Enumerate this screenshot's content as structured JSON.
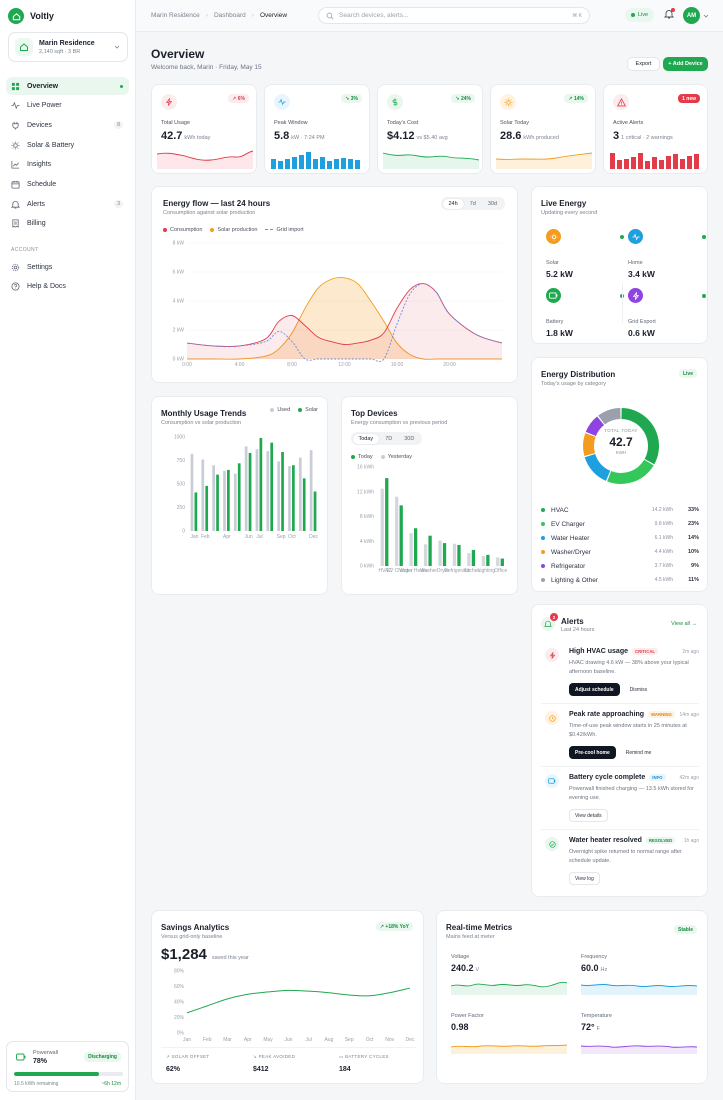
{
  "app": {
    "name": "Voltly"
  },
  "home": {
    "name": "Marin Residence",
    "details": "2,140 sqft · 3 BR"
  },
  "nav": [
    {
      "label": "Overview",
      "badge": ""
    },
    {
      "label": "Live Power",
      "badge": ""
    },
    {
      "label": "Devices",
      "badge": "8"
    },
    {
      "label": "Solar & Battery",
      "badge": ""
    },
    {
      "label": "Insights",
      "badge": ""
    },
    {
      "label": "Schedule",
      "badge": ""
    },
    {
      "label": "Alerts",
      "badge": "3"
    },
    {
      "label": "Billing",
      "badge": ""
    }
  ],
  "account": {
    "section": "ACCOUNT",
    "items": [
      "Settings",
      "Help & Docs"
    ]
  },
  "powerwall": {
    "label": "Powerwall",
    "value": "78%",
    "level": 0.78,
    "status": "Discharging",
    "remaining": "10.5 kWh remaining",
    "time": "~6h 12m"
  },
  "topbar": {
    "crumbs": [
      "Marin Residence",
      "Dashboard",
      "Overview"
    ],
    "search_placeholder": "Search devices, alerts...",
    "shortcut": "⌘ K",
    "live": "Live",
    "avatar": "AM"
  },
  "header": {
    "title": "Overview",
    "subtitle": "Welcome back, Marin · Friday, May 15",
    "export": "Export",
    "add": "+ Add Device"
  },
  "kpis": [
    {
      "label": "Total Usage",
      "value": "42.7",
      "unit": "kWh today",
      "badge": "6%",
      "color": "#e23b4a"
    },
    {
      "label": "Peak Window",
      "value": "5.8",
      "unit": "kW · 7:24 PM",
      "badge": "3%",
      "color": "#1ea0e0"
    },
    {
      "label": "Today's Cost",
      "value": "$4.12",
      "unit": "vs $5.40 avg",
      "badge": "24%",
      "color": "#1fa84f"
    },
    {
      "label": "Solar Today",
      "value": "28.6",
      "unit": "kWh produced",
      "badge": "14%",
      "color": "#f39c1f"
    },
    {
      "label": "Active Alerts",
      "value": "3",
      "unit": "1 critical · 2 warnings",
      "badge": "1 new",
      "color": "#e23b4a"
    }
  ],
  "energy_flow": {
    "title": "Energy flow — last 24 hours",
    "subtitle": "Consumption against solar production",
    "tabs": [
      "24h",
      "7d",
      "30d"
    ],
    "legend": [
      "Consumption",
      "Solar production",
      "Grid import"
    ]
  },
  "live_energy": {
    "title": "Live Energy",
    "subtitle": "Updating every second",
    "items": [
      {
        "label": "Solar",
        "value": "5.2 kW"
      },
      {
        "label": "Home",
        "value": "3.4 kW"
      },
      {
        "label": "Battery",
        "value": "1.8 kW"
      },
      {
        "label": "Grid Export",
        "value": "0.6 kW"
      }
    ]
  },
  "distribution": {
    "title": "Energy Distribution",
    "subtitle": "Today's usage by category",
    "badge": "Live",
    "center_label": "TOTAL TODAY",
    "center_value": "42.7",
    "center_unit": "KWH",
    "items": [
      {
        "label": "HVAC",
        "kwh": "14.2 kWh",
        "pct": "33%"
      },
      {
        "label": "EV Charger",
        "kwh": "9.8 kWh",
        "pct": "23%"
      },
      {
        "label": "Water Heater",
        "kwh": "6.1 kWh",
        "pct": "14%"
      },
      {
        "label": "Washer/Dryer",
        "kwh": "4.4 kWh",
        "pct": "10%"
      },
      {
        "label": "Refrigerator",
        "kwh": "3.7 kWh",
        "pct": "9%"
      },
      {
        "label": "Lighting & Other",
        "kwh": "4.5 kWh",
        "pct": "11%"
      }
    ]
  },
  "monthly": {
    "title": "Monthly Usage Trends",
    "subtitle": "Consumption vs solar production",
    "legend": [
      "Used",
      "Solar"
    ]
  },
  "top_devices": {
    "title": "Top Devices",
    "subtitle": "Energy consumption vs previous period",
    "tabs": [
      "Today",
      "7D",
      "30D"
    ],
    "legend": [
      "Today",
      "Yesterday"
    ]
  },
  "alerts": {
    "title": "Alerts",
    "subtitle": "Last 24 hours",
    "count": "2",
    "view_all": "View all →",
    "items": [
      {
        "title": "High HVAC usage",
        "tag": "CRITICAL",
        "time": "2m ago",
        "desc": "HVAC drawing 4.6 kW — 38% above your typical afternoon baseline.",
        "actions": [
          "Adjust schedule",
          "Dismiss"
        ]
      },
      {
        "title": "Peak rate approaching",
        "tag": "WARNING",
        "time": "14m ago",
        "desc": "Time-of-use peak window starts in 25 minutes at $0.42/kWh.",
        "actions": [
          "Pre-cool home",
          "Remind me"
        ]
      },
      {
        "title": "Battery cycle complete",
        "tag": "INFO",
        "time": "42m ago",
        "desc": "Powerwall finished charging — 13.5 kWh stored for evening use.",
        "actions": [
          "View details"
        ]
      },
      {
        "title": "Water heater resolved",
        "tag": "RESOLVED",
        "time": "1h ago",
        "desc": "Overnight spike returned to normal range after schedule update.",
        "actions": [
          "View log"
        ]
      }
    ]
  },
  "savings": {
    "title": "Savings Analytics",
    "subtitle": "Versus grid-only baseline",
    "badge": "+18% YoY",
    "amount": "$1,284",
    "amount_sub": "saved this year",
    "stats": [
      {
        "label": "SOLAR OFFSET",
        "value": "62%"
      },
      {
        "label": "PEAK AVOIDED",
        "value": "$412"
      },
      {
        "label": "BATTERY CYCLES",
        "value": "184"
      }
    ]
  },
  "realtime": {
    "title": "Real-time Metrics",
    "subtitle": "Mains feed at meter",
    "badge": "Stable",
    "items": [
      {
        "label": "Voltage",
        "value": "240.2",
        "unit": "V"
      },
      {
        "label": "Frequency",
        "value": "60.0",
        "unit": "Hz"
      },
      {
        "label": "Power Factor",
        "value": "0.98",
        "unit": ""
      },
      {
        "label": "Temperature",
        "value": "72°",
        "unit": "F"
      }
    ]
  },
  "chart_data": [
    {
      "type": "line",
      "title": "Energy flow — last 24 hours",
      "x": [
        0,
        2,
        4,
        6,
        7,
        8,
        9,
        10,
        11,
        12,
        13,
        14,
        15,
        16,
        17,
        18,
        19,
        20,
        22,
        24
      ],
      "xticks": [
        "0:00",
        "4:00",
        "8:00",
        "12:00",
        "16:00",
        "20:00"
      ],
      "yticks": [
        "0 kW",
        "2 kW",
        "4 kW",
        "6 kW",
        "8 kW"
      ],
      "ylim": [
        0,
        8
      ],
      "series": [
        {
          "name": "Consumption",
          "values": [
            1.1,
            0.9,
            0.9,
            1.4,
            2.6,
            3.0,
            2.3,
            1.5,
            1.2,
            1.0,
            1.1,
            1.3,
            1.8,
            3.5,
            4.8,
            5.2,
            4.6,
            3.1,
            1.7,
            1.1
          ]
        },
        {
          "name": "Solar production",
          "values": [
            0,
            0,
            0,
            0.2,
            0.7,
            1.8,
            3.5,
            4.9,
            5.5,
            5.6,
            5.2,
            4.0,
            2.6,
            1.1,
            0.3,
            0,
            0,
            0,
            0,
            0
          ]
        },
        {
          "name": "Grid import",
          "values": [
            1.1,
            0.9,
            0.9,
            1.2,
            1.9,
            1.2,
            0,
            0,
            0,
            0,
            0,
            0,
            0,
            2.4,
            4.5,
            5.2,
            4.6,
            3.1,
            1.7,
            1.1
          ]
        }
      ]
    },
    {
      "type": "bar",
      "title": "Monthly Usage Trends",
      "categories": [
        "Jan",
        "Feb",
        "Mar",
        "Apr",
        "May",
        "Jun",
        "Jul",
        "Aug",
        "Sep",
        "Oct",
        "Nov",
        "Dec"
      ],
      "xticks": [
        "Jan",
        "Feb",
        "Apr",
        "Jun",
        "Jul",
        "Sep",
        "Oct",
        "Dec"
      ],
      "yticks": [
        "0",
        "250",
        "500",
        "750",
        "1000"
      ],
      "ylim": [
        0,
        1000
      ],
      "series": [
        {
          "name": "Used",
          "values": [
            820,
            760,
            700,
            640,
            610,
            900,
            870,
            850,
            740,
            690,
            780,
            860
          ]
        },
        {
          "name": "Solar",
          "values": [
            410,
            480,
            600,
            650,
            720,
            830,
            990,
            940,
            840,
            700,
            560,
            420
          ]
        }
      ]
    },
    {
      "type": "bar",
      "title": "Top Devices",
      "categories": [
        "HVAC",
        "EV Charger",
        "Water Heater",
        "Washer",
        "Dryer",
        "Refrigerator",
        "Kitchen",
        "Lighting",
        "Office"
      ],
      "yticks": [
        "0 kWh",
        "4 kWh",
        "8 kWh",
        "12 kWh",
        "16 kWh"
      ],
      "ylim": [
        0,
        16
      ],
      "series": [
        {
          "name": "Today",
          "values": [
            14.2,
            9.8,
            6.1,
            4.9,
            3.7,
            3.4,
            2.6,
            1.8,
            1.2
          ]
        },
        {
          "name": "Yesterday",
          "values": [
            12.5,
            11.2,
            5.3,
            3.5,
            4.1,
            3.6,
            2.1,
            1.6,
            1.4
          ]
        }
      ]
    },
    {
      "type": "pie",
      "title": "Energy Distribution",
      "categories": [
        "HVAC",
        "EV Charger",
        "Water Heater",
        "Washer/Dryer",
        "Refrigerator",
        "Lighting & Other"
      ],
      "values": [
        14.2,
        9.8,
        6.1,
        4.4,
        3.7,
        4.5
      ],
      "colors": [
        "#1fa84f",
        "#34c759",
        "#1ea0e0",
        "#f39c1f",
        "#8e44e0",
        "#9aa1ad"
      ]
    },
    {
      "type": "line",
      "title": "Savings Analytics",
      "categories": [
        "Jan",
        "Feb",
        "Mar",
        "Apr",
        "May",
        "Jun",
        "Jul",
        "Aug",
        "Sep",
        "Oct",
        "Nov",
        "Dec"
      ],
      "yticks": [
        "0%",
        "20%",
        "40%",
        "60%",
        "80%"
      ],
      "ylim": [
        0,
        80
      ],
      "series": [
        {
          "values": [
            26,
            35,
            44,
            50,
            53,
            55,
            54,
            52,
            49,
            48,
            52,
            58
          ]
        }
      ]
    }
  ],
  "colors": {
    "accent": "#1fa84f",
    "danger": "#e23b4a",
    "warning": "#f39c1f",
    "info": "#1ea0e0",
    "purple": "#8e44e0"
  }
}
